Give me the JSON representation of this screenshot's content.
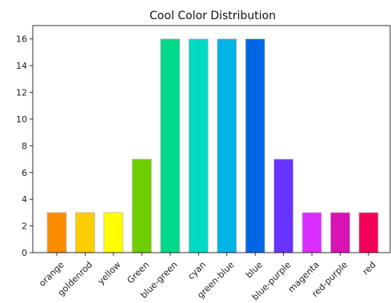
{
  "chart_data": {
    "type": "bar",
    "title": "Cool Color Distribution",
    "xlabel": "",
    "ylabel": "",
    "categories": [
      "orange",
      "goldenrod",
      "yellow",
      "Green",
      "blue-green",
      "cyan",
      "green-blue",
      "blue",
      "blue-purple",
      "magenta",
      "red-purple",
      "red"
    ],
    "values": [
      3,
      3,
      3,
      7,
      16,
      16,
      16,
      16,
      7,
      3,
      3,
      3
    ],
    "colors": [
      "#fa8c00",
      "#ffcc00",
      "#ffff00",
      "#6ecf00",
      "#00d987",
      "#00d9c4",
      "#00b4e6",
      "#0066e6",
      "#6633ff",
      "#d92eff",
      "#d912b4",
      "#f2005a"
    ],
    "ylim": [
      0,
      17
    ],
    "yticks": [
      0,
      2,
      4,
      6,
      8,
      10,
      12,
      14,
      16
    ],
    "grid": false,
    "legend": "none"
  }
}
